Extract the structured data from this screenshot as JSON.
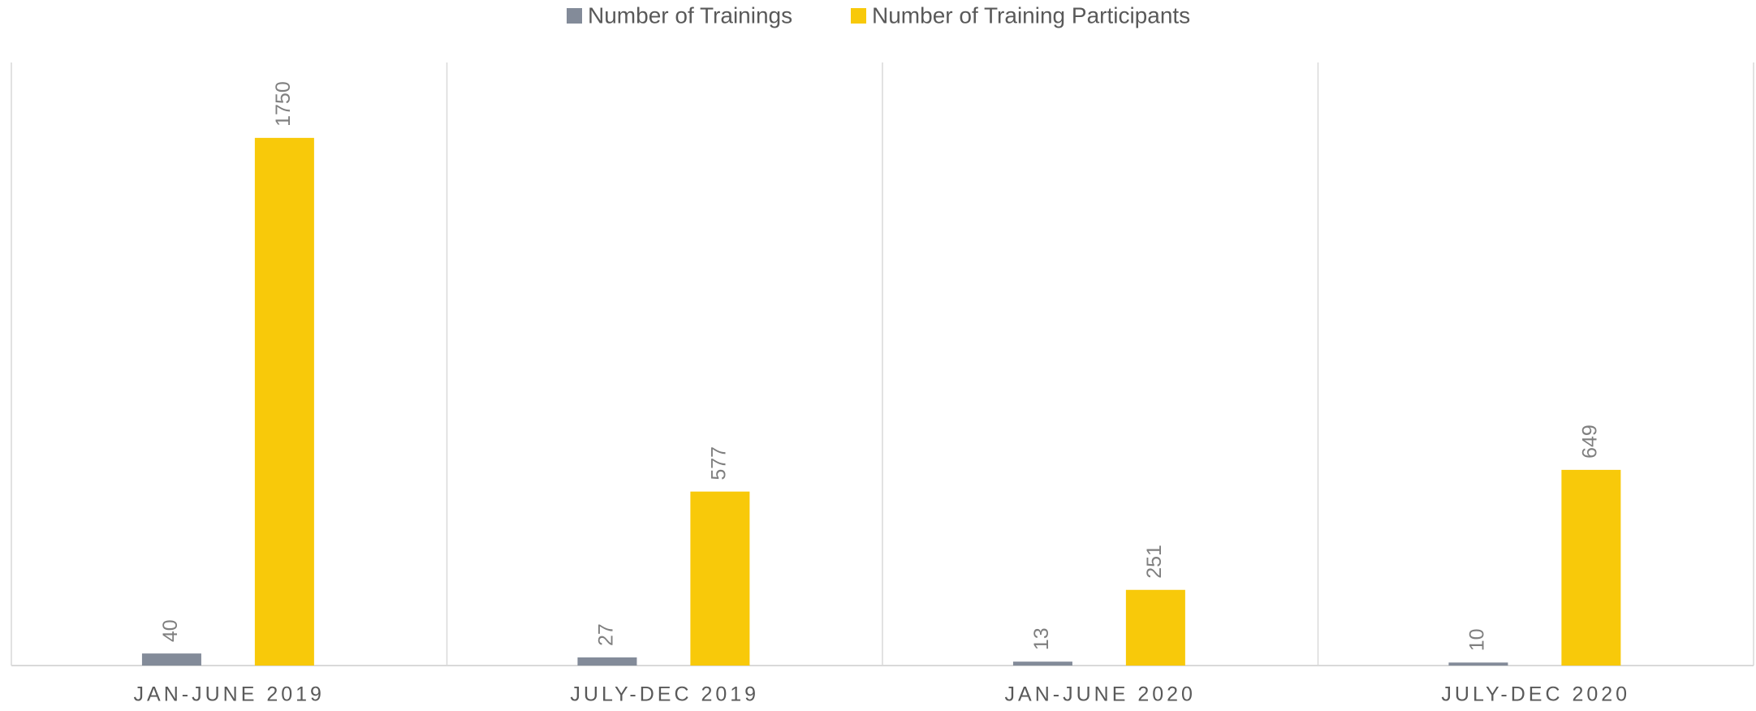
{
  "chart_data": {
    "type": "bar",
    "categories": [
      "JAN-JUNE 2019",
      "JULY-DEC 2019",
      "JAN-JUNE 2020",
      "JULY-DEC 2020"
    ],
    "series": [
      {
        "name": "Number of Trainings",
        "color": "#838b99",
        "values": [
          40,
          27,
          13,
          10
        ]
      },
      {
        "name": "Number of Training Participants",
        "color": "#f8c90a",
        "values": [
          1750,
          577,
          251,
          649
        ]
      }
    ],
    "ylim": [
      0,
      2000
    ],
    "legend": "top"
  }
}
